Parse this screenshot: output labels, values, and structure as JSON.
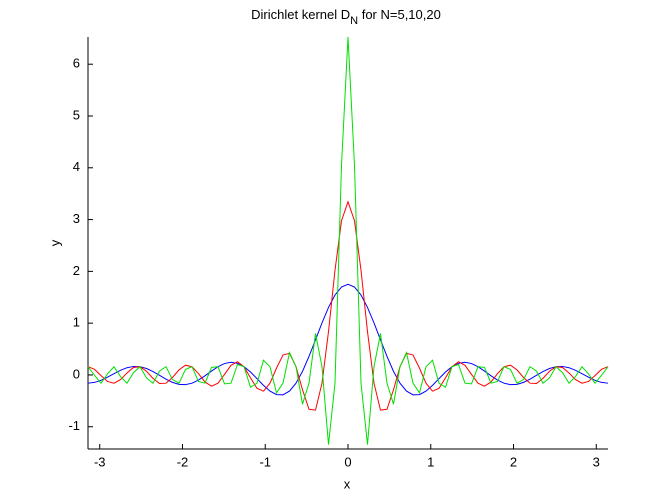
{
  "chart_data": {
    "type": "line",
    "title": [
      "Dirichlet kernel D",
      "N",
      " for N=5,10,20"
    ],
    "xlabel": "x",
    "ylabel": "y",
    "x": [
      -3.1416,
      -3.0631,
      -2.9845,
      -2.906,
      -2.8274,
      -2.7489,
      -2.6704,
      -2.5918,
      -2.5133,
      -2.4347,
      -2.3562,
      -2.2777,
      -2.1991,
      -2.1206,
      -2.042,
      -1.9635,
      -1.885,
      -1.8064,
      -1.7279,
      -1.6493,
      -1.5708,
      -1.4923,
      -1.4137,
      -1.3352,
      -1.2566,
      -1.1781,
      -1.0996,
      -1.021,
      -0.9425,
      -0.8639,
      -0.7854,
      -0.7069,
      -0.6283,
      -0.5498,
      -0.4712,
      -0.3927,
      -0.3142,
      -0.2356,
      -0.1571,
      -0.0785,
      0,
      0.0785,
      0.1571,
      0.2356,
      0.3142,
      0.3927,
      0.4712,
      0.5498,
      0.6283,
      0.7069,
      0.7854,
      0.8639,
      0.9425,
      1.021,
      1.0996,
      1.1781,
      1.2566,
      1.3352,
      1.4137,
      1.4923,
      1.5708,
      1.6493,
      1.7279,
      1.8064,
      1.885,
      1.9635,
      2.042,
      2.1206,
      2.1991,
      2.2777,
      2.3562,
      2.4347,
      2.5133,
      2.5918,
      2.6704,
      2.7489,
      2.8274,
      2.906,
      2.9845,
      3.0631,
      3.1416
    ],
    "series": [
      {
        "color": "#0000ff",
        "values": [
          -0.1592,
          -0.1446,
          -0.1037,
          -0.0435,
          0.0252,
          0.0902,
          0.1396,
          0.1642,
          0.1592,
          0.1246,
          0.0659,
          -0.0069,
          -0.0811,
          -0.1433,
          -0.1815,
          -0.1877,
          -0.1592,
          -0.099,
          -0.0164,
          0.075,
          0.1592,
          0.22,
          0.2443,
          0.2243,
          0.1592,
          0.0559,
          -0.0711,
          -0.2017,
          -0.3124,
          -0.3799,
          -0.3842,
          -0.3121,
          -0.1592,
          0.0689,
          0.3562,
          0.6783,
          1.0049,
          1.3032,
          1.5425,
          1.6973,
          1.7507,
          1.6973,
          1.5425,
          1.3032,
          1.0049,
          0.6783,
          0.3562,
          0.0689,
          -0.1592,
          -0.3121,
          -0.3842,
          -0.3799,
          -0.3124,
          -0.2017,
          -0.0711,
          0.0559,
          0.1592,
          0.2243,
          0.2443,
          0.22,
          0.1592,
          0.075,
          -0.0164,
          -0.099,
          -0.1592,
          -0.1877,
          -0.1815,
          -0.1433,
          -0.0811,
          -0.0069,
          0.0659,
          0.1246,
          0.1592,
          0.1642,
          0.1396,
          0.0902,
          0.0252,
          -0.0435,
          -0.1037,
          -0.1446,
          -0.1592
        ]
      },
      {
        "color": "#ff0000",
        "values": [
          0.1592,
          0.1081,
          -0.0125,
          -0.1259,
          -0.1592,
          -0.0902,
          0.0382,
          0.1443,
          0.1592,
          0.071,
          -0.0659,
          -0.1644,
          -0.1592,
          -0.0495,
          0.0975,
          0.1877,
          0.1592,
          0.0238,
          -0.1359,
          -0.2166,
          -0.1592,
          0.0092,
          0.1863,
          0.2553,
          0.1592,
          -0.0559,
          -0.2597,
          -0.3135,
          -0.1592,
          0.1316,
          0.3842,
          0.4176,
          0.1592,
          -0.2865,
          -0.6629,
          -0.6783,
          -0.1592,
          0.8383,
          2.0222,
          2.9769,
          3.3423,
          2.9769,
          2.0222,
          0.8383,
          -0.1592,
          -0.6783,
          -0.6629,
          -0.2865,
          0.1592,
          0.4176,
          0.3842,
          0.1316,
          -0.1592,
          -0.3135,
          -0.2597,
          -0.0559,
          0.1592,
          0.2553,
          0.1863,
          0.0092,
          -0.1592,
          -0.2166,
          -0.1359,
          0.0238,
          0.1592,
          0.1877,
          0.0975,
          -0.0495,
          -0.1592,
          -0.1644,
          -0.0659,
          0.071,
          0.1592,
          0.1443,
          0.0382,
          -0.0902,
          -0.1592,
          -0.1259,
          -0.0125,
          0.1081,
          0.1592
        ]
      },
      {
        "color": "#00e000",
        "values": [
          0.1592,
          -0.0063,
          -0.1592,
          0.0188,
          0.1592,
          -0.0317,
          -0.1592,
          0.0449,
          0.1592,
          -0.0587,
          -0.1592,
          0.0734,
          0.1592,
          -0.0891,
          -0.1592,
          0.1063,
          0.1592,
          -0.1255,
          -0.1592,
          0.1471,
          0.1592,
          -0.1722,
          -0.1592,
          0.2019,
          0.1592,
          -0.2382,
          -0.1592,
          0.2842,
          0.1592,
          -0.3452,
          -0.1592,
          0.4314,
          0.1592,
          -0.5643,
          -0.1592,
          0.8001,
          0.1592,
          -1.3447,
          -0.1592,
          4.0509,
          6.5253,
          4.0509,
          -0.1592,
          -1.3447,
          0.1592,
          0.8001,
          -0.1592,
          -0.5643,
          0.1592,
          0.4314,
          -0.1592,
          -0.3452,
          0.1592,
          0.2842,
          -0.1592,
          -0.2382,
          0.1592,
          0.2019,
          -0.1592,
          -0.1722,
          0.1592,
          0.1471,
          -0.1592,
          -0.1255,
          0.1592,
          0.1063,
          -0.1592,
          -0.0891,
          0.1592,
          0.0734,
          -0.1592,
          -0.0587,
          0.1592,
          0.0449,
          -0.1592,
          -0.0317,
          0.1592,
          0.0188,
          -0.1592,
          -0.0063,
          0.1592
        ]
      }
    ],
    "xlim": [
      -3.1416,
      3.1416
    ],
    "ylim": [
      -1.43,
      6.5253
    ],
    "xticks": [
      -3,
      -2,
      -1,
      0,
      1,
      2,
      3
    ],
    "yticks": [
      -1,
      0,
      1,
      2,
      3,
      4,
      5,
      6
    ],
    "grid": false
  }
}
